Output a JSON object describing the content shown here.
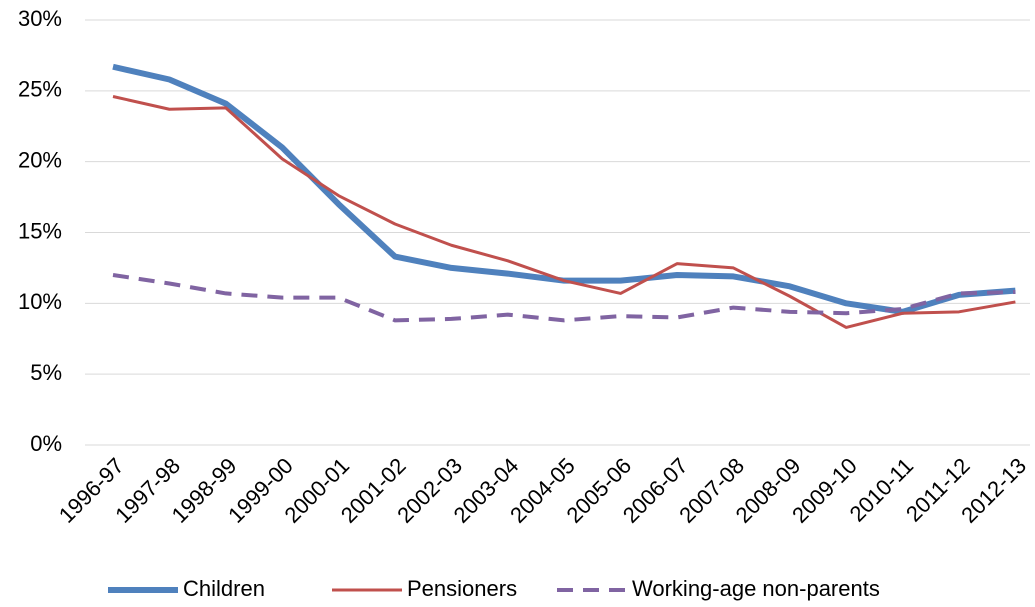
{
  "chart_data": {
    "type": "line",
    "categories": [
      "1996-97",
      "1997-98",
      "1998-99",
      "1999-00",
      "2000-01",
      "2001-02",
      "2002-03",
      "2003-04",
      "2004-05",
      "2005-06",
      "2006-07",
      "2007-08",
      "2008-09",
      "2009-10",
      "2010-11",
      "2011-12",
      "2012-13"
    ],
    "series": [
      {
        "name": "Children",
        "color": "#4f81bd",
        "values": [
          26.7,
          25.8,
          24.1,
          21.0,
          17.0,
          13.3,
          12.5,
          12.1,
          11.6,
          11.6,
          12.0,
          11.9,
          11.2,
          10.0,
          9.4,
          10.6,
          10.9
        ]
      },
      {
        "name": "Pensioners",
        "color": "#c0504d",
        "values": [
          24.6,
          23.7,
          23.8,
          20.2,
          17.6,
          15.6,
          14.1,
          13.0,
          11.6,
          10.7,
          12.8,
          12.5,
          10.5,
          8.3,
          9.3,
          9.4,
          10.1
        ]
      },
      {
        "name": "Working-age non-parents",
        "color": "#8064a2",
        "dashed": true,
        "values": [
          12.0,
          11.4,
          10.7,
          10.4,
          10.4,
          8.8,
          8.9,
          9.2,
          8.8,
          9.1,
          9.0,
          9.7,
          9.4,
          9.3,
          9.6,
          10.7,
          10.8
        ]
      }
    ],
    "ylim": [
      0,
      30
    ],
    "yticks": [
      {
        "value": 0,
        "label": "0%"
      },
      {
        "value": 5,
        "label": "5%"
      },
      {
        "value": 10,
        "label": "10%"
      },
      {
        "value": 15,
        "label": "15%"
      },
      {
        "value": 20,
        "label": "20%"
      },
      {
        "value": 25,
        "label": "25%"
      },
      {
        "value": 30,
        "label": "30%"
      }
    ],
    "grid": true,
    "legend": "bottom"
  }
}
